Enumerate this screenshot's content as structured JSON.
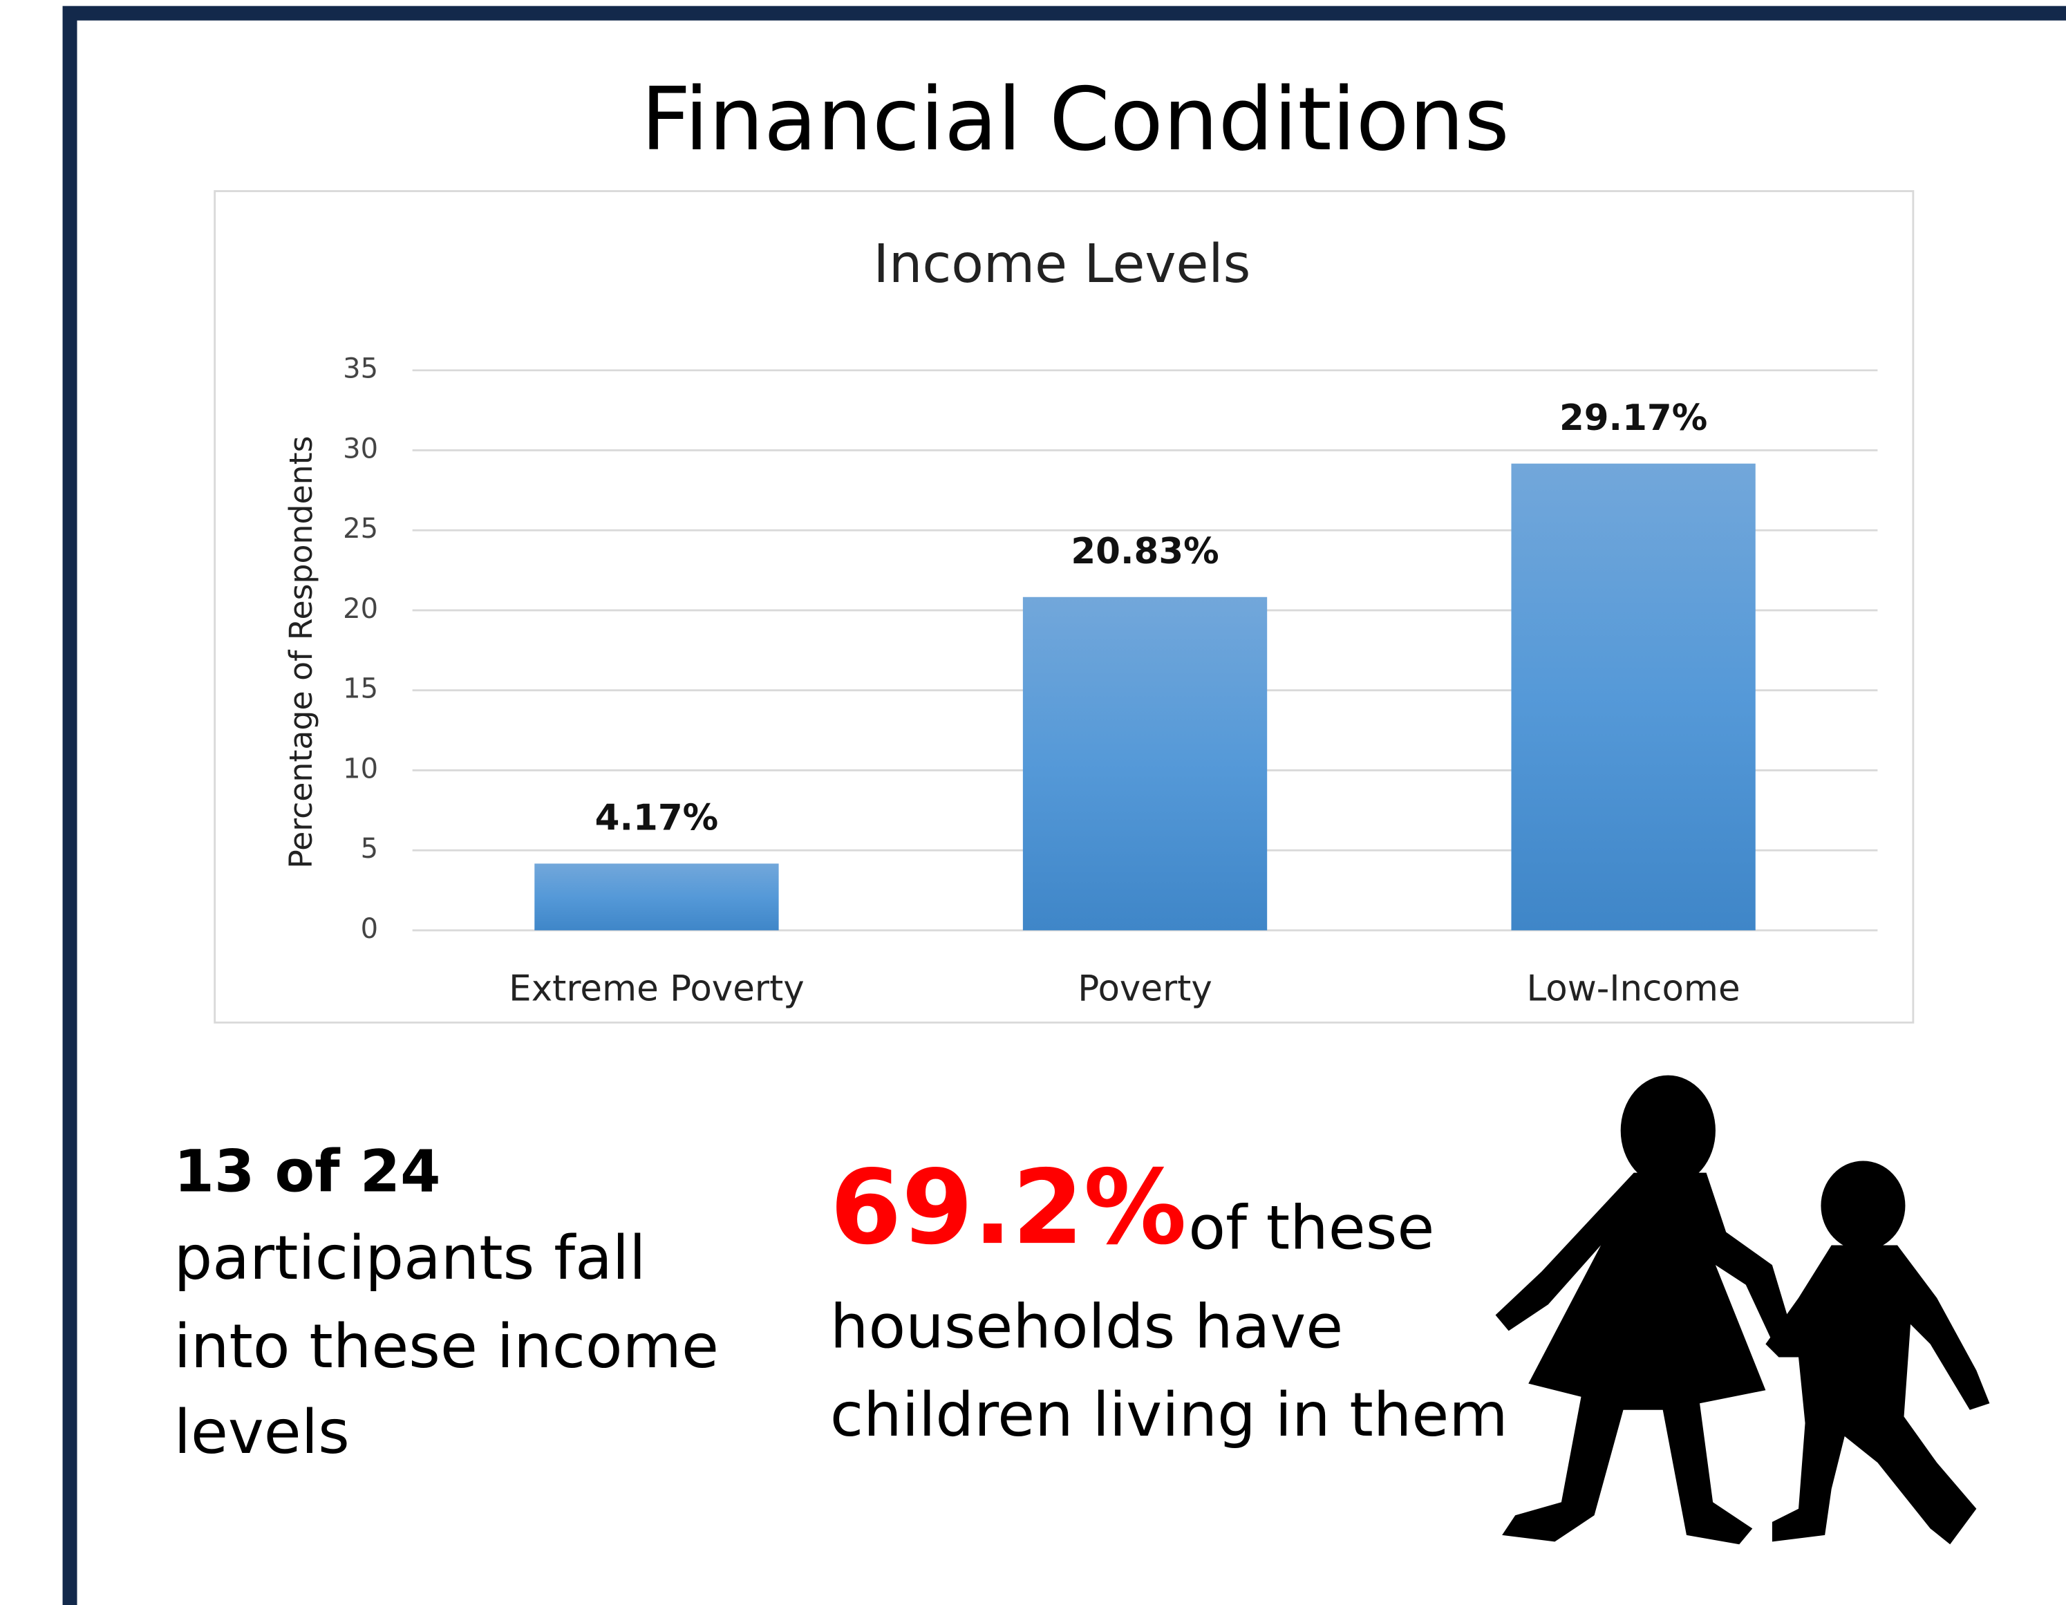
{
  "title": "Financial Conditions",
  "chart_data": {
    "type": "bar",
    "title": "Income Levels",
    "y_label": "Percentage of Respondents",
    "categories": [
      "Extreme Poverty",
      "Poverty",
      "Low-Income"
    ],
    "values": [
      4.17,
      20.83,
      29.17
    ],
    "value_labels": [
      "4.17%",
      "20.83%",
      "29.17%"
    ],
    "color": "#5b9bd5",
    "ylim": [
      0,
      35
    ],
    "yticks": [
      0,
      5,
      10,
      15,
      20,
      25,
      30,
      35
    ],
    "grid": true
  },
  "stat_participants": {
    "headline": "13 of 24",
    "lines": [
      "participants fall",
      "into these income",
      "levels"
    ]
  },
  "stat_children": {
    "highlight": "69.2%",
    "lines": [
      "of these",
      "households have",
      "children living in them"
    ]
  }
}
